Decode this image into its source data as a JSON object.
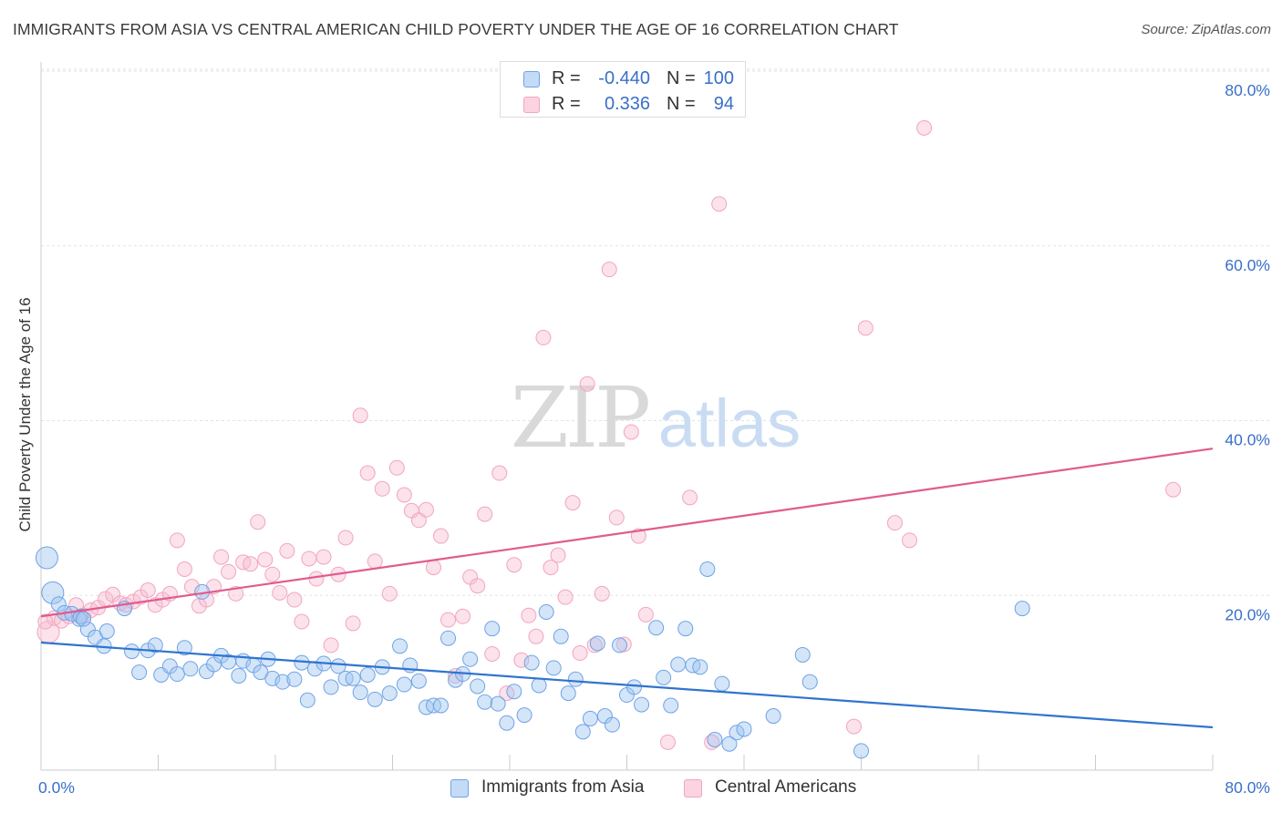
{
  "title": "IMMIGRANTS FROM ASIA VS CENTRAL AMERICAN CHILD POVERTY UNDER THE AGE OF 16 CORRELATION CHART",
  "source": "Source: ZipAtlas.com",
  "watermark": {
    "zip": "ZIP",
    "atlas": "atlas"
  },
  "legend_top": {
    "rows": [
      {
        "r_label": "R =",
        "r_value": "-0.440",
        "n_label": "N =",
        "n_value": "100",
        "color": "#6fa3e6"
      },
      {
        "r_label": "R =",
        "r_value": "0.336",
        "n_label": "N =",
        "n_value": "94",
        "color": "#f2a5bf"
      }
    ]
  },
  "legend_bottom": {
    "items": [
      {
        "label": "Immigrants from Asia",
        "color": "#6fa3e6"
      },
      {
        "label": "Central Americans",
        "color": "#f2a5bf"
      }
    ]
  },
  "chart_data": {
    "type": "scatter",
    "title": "IMMIGRANTS FROM ASIA VS CENTRAL AMERICAN CHILD POVERTY UNDER THE AGE OF 16 CORRELATION CHART",
    "xlabel": "",
    "ylabel": "Child Poverty Under the Age of 16",
    "xlim": [
      0,
      80
    ],
    "ylim": [
      0,
      80
    ],
    "x_tick_labels": [
      "0.0%",
      "80.0%"
    ],
    "y_tick_labels": [
      "20.0%",
      "40.0%",
      "60.0%",
      "80.0%"
    ],
    "y_ticks": [
      20,
      40,
      60,
      80
    ],
    "grid": true,
    "legend_position": "top-center",
    "series": [
      {
        "name": "Immigrants from Asia",
        "color": "#6fa3e6",
        "line_color": "#2f74d0",
        "trend": {
          "x": [
            0,
            80
          ],
          "y": [
            14.6,
            4.9
          ]
        },
        "points": [
          [
            0.4,
            24.3
          ],
          [
            0.8,
            20.3
          ],
          [
            1.2,
            19.0
          ],
          [
            1.6,
            18.0
          ],
          [
            2.1,
            17.9
          ],
          [
            2.6,
            17.3
          ],
          [
            3.2,
            16.1
          ],
          [
            3.7,
            15.2
          ],
          [
            4.3,
            14.2
          ],
          [
            4.5,
            15.9
          ],
          [
            5.7,
            18.5
          ],
          [
            6.2,
            13.6
          ],
          [
            6.7,
            11.2
          ],
          [
            7.3,
            13.7
          ],
          [
            7.8,
            14.3
          ],
          [
            8.2,
            10.9
          ],
          [
            8.8,
            11.9
          ],
          [
            9.3,
            11.0
          ],
          [
            9.8,
            14.0
          ],
          [
            10.2,
            11.6
          ],
          [
            11.0,
            20.4
          ],
          [
            11.3,
            11.3
          ],
          [
            11.8,
            12.1
          ],
          [
            12.3,
            13.1
          ],
          [
            12.8,
            12.4
          ],
          [
            13.5,
            10.8
          ],
          [
            13.8,
            12.5
          ],
          [
            14.5,
            12.0
          ],
          [
            15.0,
            11.2
          ],
          [
            15.5,
            12.7
          ],
          [
            15.8,
            10.5
          ],
          [
            16.5,
            10.1
          ],
          [
            17.3,
            10.4
          ],
          [
            17.8,
            12.3
          ],
          [
            18.2,
            8.0
          ],
          [
            18.7,
            11.6
          ],
          [
            19.3,
            12.2
          ],
          [
            19.8,
            9.5
          ],
          [
            20.3,
            11.9
          ],
          [
            20.8,
            10.5
          ],
          [
            21.3,
            10.5
          ],
          [
            21.8,
            8.9
          ],
          [
            22.3,
            10.9
          ],
          [
            22.8,
            8.1
          ],
          [
            23.3,
            11.8
          ],
          [
            23.8,
            8.8
          ],
          [
            24.5,
            14.2
          ],
          [
            24.8,
            9.8
          ],
          [
            25.2,
            12.0
          ],
          [
            25.8,
            10.2
          ],
          [
            26.3,
            7.2
          ],
          [
            26.8,
            7.4
          ],
          [
            27.3,
            7.4
          ],
          [
            27.8,
            15.1
          ],
          [
            28.3,
            10.3
          ],
          [
            28.8,
            11.0
          ],
          [
            29.3,
            12.7
          ],
          [
            29.8,
            9.6
          ],
          [
            30.3,
            7.8
          ],
          [
            30.8,
            16.2
          ],
          [
            31.2,
            7.6
          ],
          [
            31.8,
            5.4
          ],
          [
            32.3,
            9.0
          ],
          [
            33.0,
            6.3
          ],
          [
            33.5,
            12.3
          ],
          [
            34.0,
            9.7
          ],
          [
            34.5,
            18.1
          ],
          [
            35.0,
            11.7
          ],
          [
            35.5,
            15.3
          ],
          [
            36.0,
            8.8
          ],
          [
            36.5,
            10.4
          ],
          [
            37.0,
            4.4
          ],
          [
            37.5,
            5.9
          ],
          [
            38.0,
            14.5
          ],
          [
            38.5,
            6.2
          ],
          [
            39.0,
            5.2
          ],
          [
            39.5,
            14.3
          ],
          [
            40.0,
            8.6
          ],
          [
            40.5,
            9.5
          ],
          [
            41.0,
            7.5
          ],
          [
            42.0,
            16.3
          ],
          [
            42.5,
            10.6
          ],
          [
            43.0,
            7.4
          ],
          [
            43.5,
            12.1
          ],
          [
            44.0,
            16.2
          ],
          [
            44.5,
            12.0
          ],
          [
            45.0,
            11.8
          ],
          [
            45.5,
            23.0
          ],
          [
            46.0,
            3.5
          ],
          [
            46.5,
            9.9
          ],
          [
            47.0,
            3.0
          ],
          [
            47.5,
            4.3
          ],
          [
            48.0,
            4.7
          ],
          [
            50.0,
            6.2
          ],
          [
            52.0,
            13.2
          ],
          [
            52.5,
            10.1
          ],
          [
            56.0,
            2.2
          ],
          [
            67.0,
            18.5
          ],
          [
            2.7,
            17.6
          ],
          [
            2.9,
            17.3
          ]
        ],
        "large_points": [
          [
            0.4,
            24.3
          ],
          [
            0.8,
            20.3
          ]
        ]
      },
      {
        "name": "Central Americans",
        "color": "#f2a5bf",
        "line_color": "#e05b8e",
        "trend": {
          "x": [
            0,
            80
          ],
          "y": [
            17.6,
            36.8
          ]
        },
        "points": [
          [
            0.5,
            15.8
          ],
          [
            0.9,
            17.4
          ],
          [
            1.4,
            17.1
          ],
          [
            1.9,
            17.6
          ],
          [
            2.4,
            18.9
          ],
          [
            2.9,
            17.7
          ],
          [
            3.4,
            18.3
          ],
          [
            3.9,
            18.6
          ],
          [
            4.4,
            19.6
          ],
          [
            4.9,
            20.1
          ],
          [
            5.4,
            19.1
          ],
          [
            5.8,
            18.9
          ],
          [
            6.3,
            19.3
          ],
          [
            6.8,
            19.8
          ],
          [
            7.3,
            20.6
          ],
          [
            7.8,
            18.9
          ],
          [
            8.3,
            19.5
          ],
          [
            8.8,
            20.2
          ],
          [
            9.3,
            26.3
          ],
          [
            9.8,
            23.0
          ],
          [
            10.3,
            21.0
          ],
          [
            10.8,
            18.8
          ],
          [
            11.3,
            19.5
          ],
          [
            11.8,
            21.0
          ],
          [
            12.3,
            24.4
          ],
          [
            12.8,
            22.7
          ],
          [
            13.3,
            20.2
          ],
          [
            13.8,
            23.8
          ],
          [
            14.3,
            23.6
          ],
          [
            14.8,
            28.4
          ],
          [
            15.3,
            24.1
          ],
          [
            15.8,
            22.4
          ],
          [
            16.3,
            20.3
          ],
          [
            16.8,
            25.1
          ],
          [
            17.3,
            19.5
          ],
          [
            17.8,
            17.0
          ],
          [
            18.3,
            24.2
          ],
          [
            18.8,
            21.9
          ],
          [
            19.3,
            24.4
          ],
          [
            19.8,
            14.3
          ],
          [
            20.3,
            22.4
          ],
          [
            20.8,
            26.6
          ],
          [
            21.3,
            16.8
          ],
          [
            21.8,
            40.6
          ],
          [
            22.3,
            34.0
          ],
          [
            22.8,
            23.9
          ],
          [
            23.3,
            32.2
          ],
          [
            23.8,
            20.2
          ],
          [
            24.3,
            34.6
          ],
          [
            24.8,
            31.5
          ],
          [
            25.3,
            29.7
          ],
          [
            25.8,
            28.6
          ],
          [
            26.3,
            29.8
          ],
          [
            26.8,
            23.2
          ],
          [
            27.3,
            26.8
          ],
          [
            27.8,
            17.2
          ],
          [
            28.3,
            10.8
          ],
          [
            28.8,
            17.6
          ],
          [
            29.3,
            22.1
          ],
          [
            29.8,
            21.1
          ],
          [
            30.3,
            29.3
          ],
          [
            30.8,
            13.3
          ],
          [
            31.3,
            34.0
          ],
          [
            31.8,
            8.8
          ],
          [
            32.3,
            23.5
          ],
          [
            32.8,
            12.6
          ],
          [
            33.3,
            17.7
          ],
          [
            33.8,
            15.3
          ],
          [
            34.3,
            49.5
          ],
          [
            34.8,
            23.2
          ],
          [
            35.3,
            24.6
          ],
          [
            35.8,
            19.8
          ],
          [
            36.3,
            30.6
          ],
          [
            36.8,
            13.4
          ],
          [
            37.3,
            44.2
          ],
          [
            37.8,
            14.3
          ],
          [
            38.3,
            20.2
          ],
          [
            38.8,
            57.3
          ],
          [
            39.3,
            28.9
          ],
          [
            39.8,
            14.4
          ],
          [
            40.3,
            38.7
          ],
          [
            40.8,
            26.8
          ],
          [
            41.3,
            17.8
          ],
          [
            42.8,
            3.2
          ],
          [
            44.3,
            31.2
          ],
          [
            45.8,
            3.2
          ],
          [
            46.3,
            64.8
          ],
          [
            55.5,
            5.0
          ],
          [
            56.3,
            50.6
          ],
          [
            58.3,
            28.3
          ],
          [
            59.3,
            26.3
          ],
          [
            60.3,
            73.5
          ],
          [
            77.3,
            32.1
          ],
          [
            0.3,
            17.0
          ]
        ],
        "large_points": [
          [
            0.5,
            15.8
          ]
        ]
      }
    ]
  }
}
